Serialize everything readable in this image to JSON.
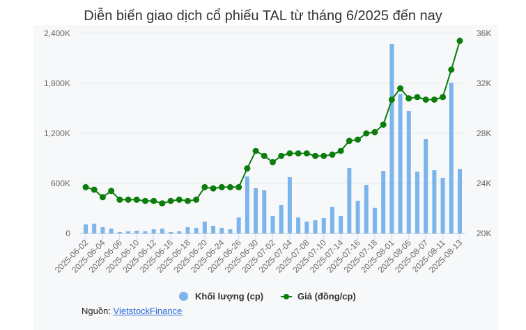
{
  "title": "Diễn biến giao dịch cổ phiếu TAL từ tháng 6/2025 đến nay",
  "legend": {
    "volume_label": "Khối lượng (cp)",
    "price_label": "Giá (đồng/cp)"
  },
  "source": {
    "prefix": "Nguồn:",
    "link_text": "VietstockFinance"
  },
  "colors": {
    "volume_bar": "#7cb5ec",
    "price_line": "#0a7d0a",
    "grid": "#e6e6e6",
    "plot_bg": "#f7f8f9"
  },
  "chart_data": {
    "type": "bar+line",
    "title": "Diễn biến giao dịch cổ phiếu TAL từ tháng 6/2025 đến nay",
    "xlabel": "",
    "ylabel_left": "Khối lượng (cp)",
    "ylabel_right": "Giá (đồng/cp)",
    "ylim_left": [
      0,
      2400000
    ],
    "ylim_right": [
      20000,
      36000
    ],
    "yticks_left": [
      "0",
      "600K",
      "1,200K",
      "1,800K",
      "2,400K"
    ],
    "yticks_right": [
      "20K",
      "24K",
      "28K",
      "32K",
      "36K"
    ],
    "grid": true,
    "legend_position": "bottom",
    "xtick_labels": [
      "2025-06-02",
      "2025-06-04",
      "2025-06-06",
      "2025-06-10",
      "2025-06-12",
      "2025-06-16",
      "2025-06-18",
      "2025-06-20",
      "2025-06-24",
      "2025-06-26",
      "2025-06-30",
      "2025-07-02",
      "2025-07-04",
      "2025-07-08",
      "2025-07-10",
      "2025-07-14",
      "2025-07-16",
      "2025-07-18",
      "2025-08-01",
      "2025-08-05",
      "2025-08-07",
      "2025-08-11",
      "2025-08-13"
    ],
    "point_count": 45,
    "series": [
      {
        "name": "Khối lượng (cp)",
        "type": "bar",
        "axis": "left",
        "values": [
          108000,
          117000,
          75000,
          58000,
          17000,
          25000,
          33000,
          25000,
          50000,
          58000,
          17000,
          25000,
          75000,
          67000,
          142000,
          92000,
          67000,
          50000,
          192000,
          683000,
          542000,
          517000,
          208000,
          342000,
          675000,
          192000,
          142000,
          158000,
          183000,
          317000,
          208000,
          783000,
          392000,
          583000,
          308000,
          750000,
          2275000,
          1675000,
          1467000,
          742000,
          1133000,
          758000,
          667000,
          1808000,
          775000
        ]
      },
      {
        "name": "Giá (đồng/cp)",
        "type": "line",
        "axis": "right",
        "values": [
          23700,
          23500,
          22900,
          23400,
          22700,
          22700,
          22700,
          22600,
          22600,
          22400,
          22600,
          22700,
          22600,
          22700,
          23700,
          23600,
          23700,
          23700,
          23700,
          25200,
          26600,
          26200,
          25700,
          26200,
          26400,
          26400,
          26400,
          26200,
          26200,
          26300,
          26600,
          27400,
          27500,
          28000,
          28100,
          28700,
          30700,
          31600,
          30800,
          30900,
          30700,
          30700,
          30900,
          33100,
          35400
        ]
      }
    ]
  }
}
